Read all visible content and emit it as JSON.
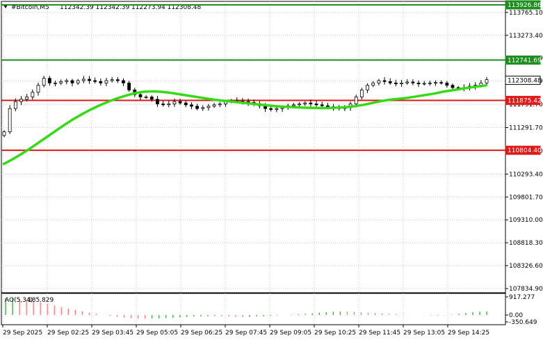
{
  "header": {
    "symbol": "#Bitcoin,M5",
    "ohlc": "112342.39 112342.39 112273.94 112308.48"
  },
  "colors": {
    "background": "#ffffff",
    "grid": "#c8c8c8",
    "candle": "#000000",
    "resistance": "#1e8c1e",
    "support": "#e01818",
    "moving_average": "#32dc14",
    "ao_up": "#ff8080",
    "ao_down": "#ff8080",
    "ao_green": "#3cb43c"
  },
  "chart_data": [
    {
      "type": "candlestick",
      "title": "#Bitcoin,M5",
      "ylim": [
        107834.9,
        113926.86
      ],
      "y_ticks": [
        "113765.10",
        "113273.40",
        "112781.69",
        "112289.99",
        "111791.70",
        "111291.70",
        "110791.70",
        "110293.40",
        "109801.70",
        "109310.00",
        "108818.30",
        "108326.60",
        "107834.90"
      ],
      "x_ticks": [
        "29 Sep 2025",
        "29 Sep 02:25",
        "29 Sep 03:45",
        "29 Sep 05:05",
        "29 Sep 06:25",
        "29 Sep 07:45",
        "29 Sep 09:05",
        "29 Sep 10:25",
        "29 Sep 11:45",
        "29 Sep 13:05",
        "29 Sep 14:25"
      ],
      "price_labels": [
        {
          "value": "113926.86",
          "kind": "resistance"
        },
        {
          "value": "112741.69",
          "kind": "resistance"
        },
        {
          "value": "112308.48",
          "kind": "current"
        },
        {
          "value": "111875.42",
          "kind": "support"
        },
        {
          "value": "110804.40",
          "kind": "support"
        }
      ],
      "horizontal_levels": [
        {
          "price": 113926.86,
          "kind": "resistance"
        },
        {
          "price": 112741.69,
          "kind": "resistance"
        },
        {
          "price": 111875.42,
          "kind": "support"
        },
        {
          "price": 110804.4,
          "kind": "support"
        }
      ],
      "close_path": [
        111200,
        111700,
        111850,
        111900,
        111950,
        112050,
        112200,
        112350,
        112250,
        112250,
        112280,
        112300,
        112250,
        112300,
        112330,
        112300,
        112280,
        112250,
        112300,
        112320,
        112300,
        112250,
        112100,
        112000,
        111950,
        111950,
        111900,
        111800,
        111780,
        111800,
        111850,
        111820,
        111780,
        111750,
        111700,
        111720,
        111750,
        111780,
        111800,
        111850,
        111870,
        111860,
        111850,
        111830,
        111800,
        111760,
        111700,
        111680,
        111700,
        111720,
        111760,
        111780,
        111800,
        111820,
        111800,
        111780,
        111760,
        111740,
        111720,
        111700,
        111720,
        111800,
        111950,
        112100,
        112200,
        112250,
        112300,
        112280,
        112250,
        112230,
        112250,
        112270,
        112250,
        112230,
        112240,
        112250,
        112260,
        112250,
        112200,
        112150,
        112120,
        112150,
        112180,
        112200,
        112250,
        112320
      ],
      "moving_average": [
        110500,
        110600,
        110710,
        110830,
        110960,
        111090,
        111220,
        111350,
        111470,
        111580,
        111680,
        111770,
        111850,
        111920,
        111980,
        112030,
        112060,
        112070,
        112060,
        112040,
        112010,
        111980,
        111950,
        111920,
        111890,
        111870,
        111850,
        111830,
        111810,
        111790,
        111770,
        111750,
        111740,
        111730,
        111720,
        111715,
        111710,
        111712,
        111718,
        111730,
        111750,
        111780,
        111820,
        111860,
        111890,
        111910,
        111930,
        111960,
        111990,
        112020,
        112060,
        112090,
        112120,
        112150,
        112175,
        112200
      ],
      "ao": {
        "label": "AO(5,34)",
        "value_label": "185.829",
        "ylim": [
          -350.649,
          917.277
        ],
        "y_ticks": [
          "917.277",
          "0.00",
          "-350.649"
        ],
        "values": [
          860,
          880,
          820,
          760,
          700,
          640,
          560,
          480,
          400,
          330,
          260,
          190,
          120,
          60,
          10,
          -40,
          -90,
          -130,
          -160,
          -180,
          -190,
          -185,
          -175,
          -160,
          -140,
          -120,
          -100,
          -80,
          -70,
          -60,
          -50,
          -60,
          -80,
          -100,
          -110,
          -100,
          -80,
          -60,
          -40,
          -20,
          0,
          20,
          40,
          60,
          90,
          120,
          150,
          170,
          180,
          175,
          160,
          140,
          120,
          100,
          80,
          60,
          40,
          20,
          10,
          0,
          -10,
          -20,
          -30,
          -10,
          20,
          60,
          100,
          140,
          170,
          185
        ]
      }
    }
  ]
}
